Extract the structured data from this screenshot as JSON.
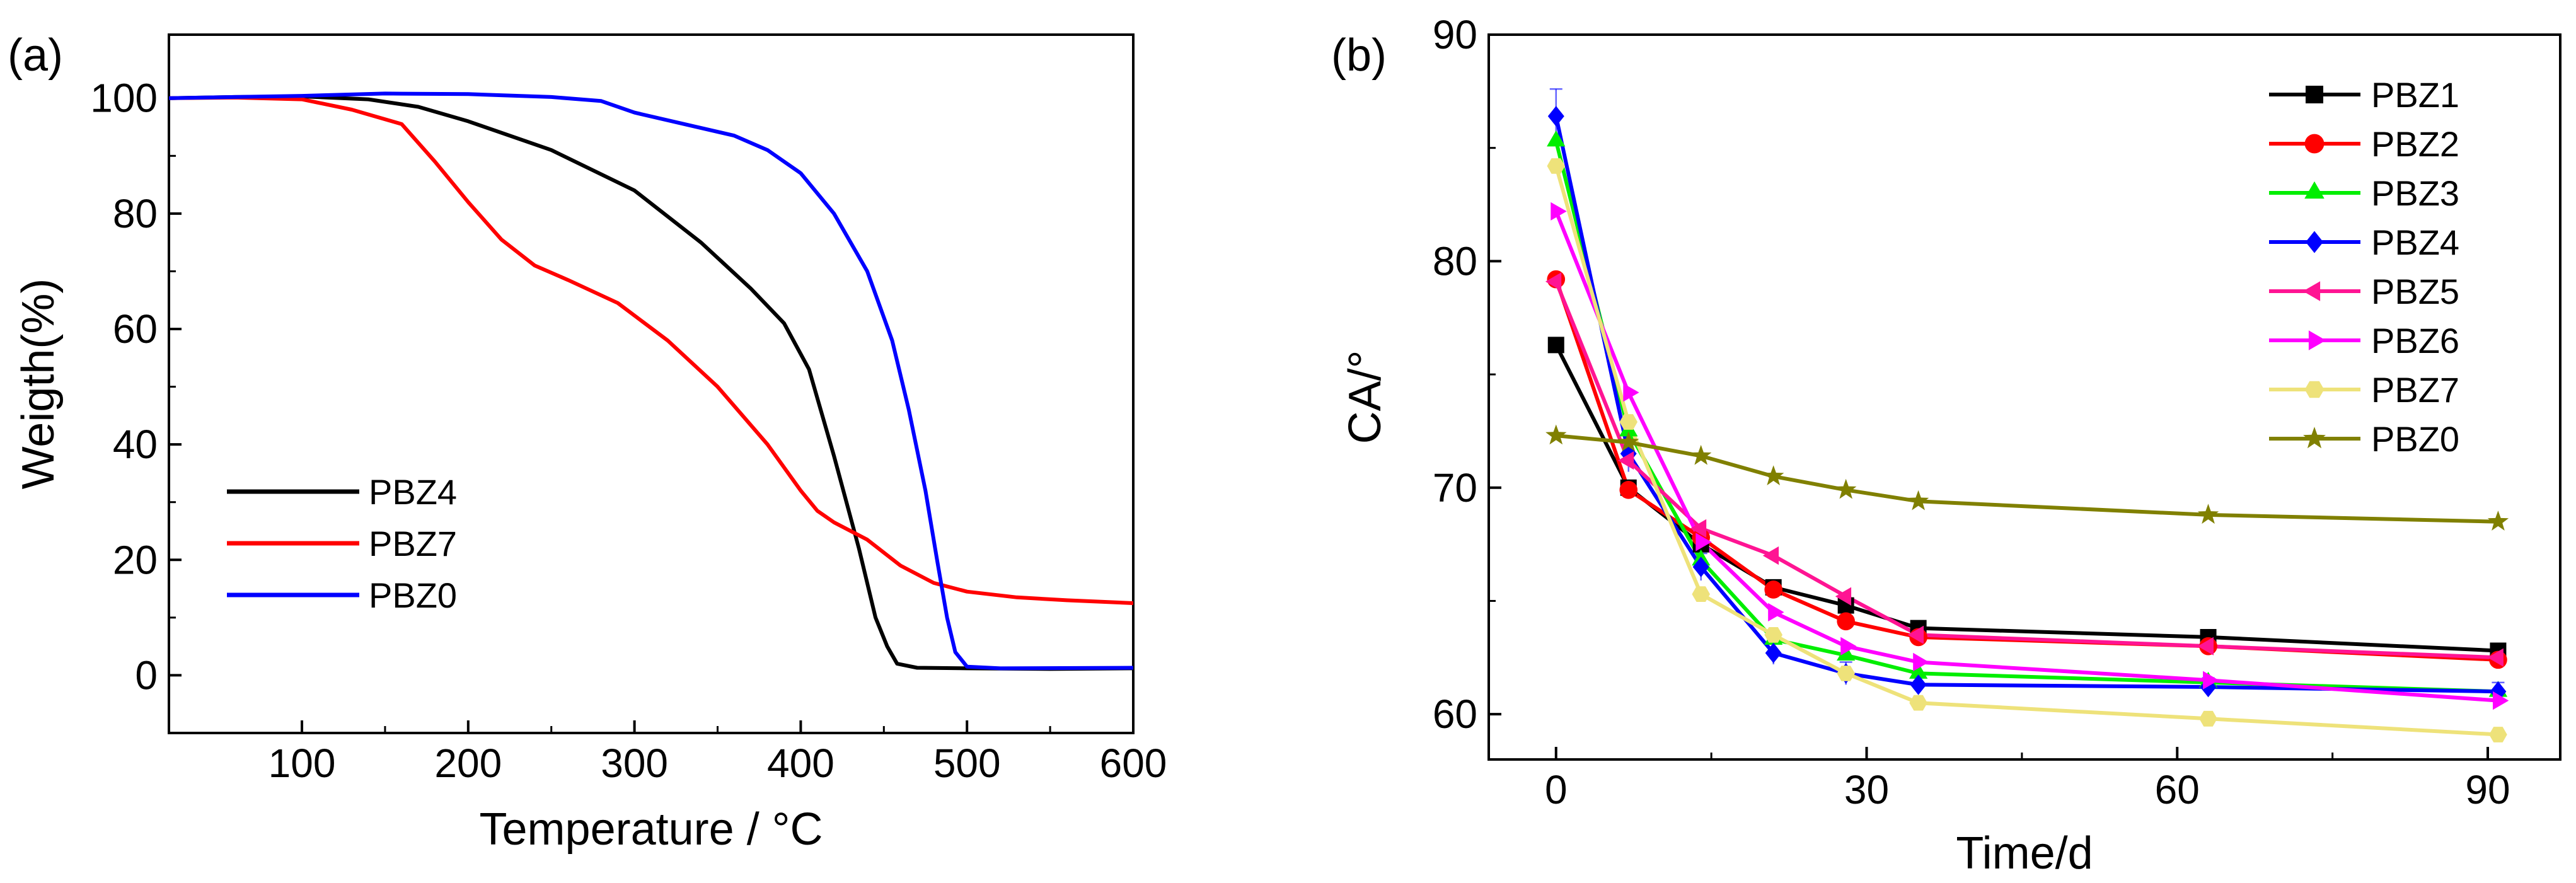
{
  "chart_data": [
    {
      "type": "line",
      "panel_label": "(a)",
      "title": "",
      "xlabel": "Temperature / °C",
      "ylabel": "Weigth(%)",
      "xlim": [
        20,
        600
      ],
      "ylim": [
        -10,
        111
      ],
      "x_ticks": [
        100,
        200,
        300,
        400,
        500,
        600
      ],
      "y_ticks": [
        0,
        20,
        40,
        60,
        80,
        100
      ],
      "x_tick_labels": [
        "100",
        "200",
        "300",
        "400",
        "500",
        "600"
      ],
      "y_tick_labels": [
        "0",
        "20",
        "40",
        "60",
        "80",
        "100"
      ],
      "legend_position": "middle-left",
      "series": [
        {
          "name": "PBZ4",
          "color": "#000000",
          "points": [
            [
              20,
              100
            ],
            [
              60,
              100.2
            ],
            [
              100,
              100.3
            ],
            [
              140,
              99.8
            ],
            [
              170,
              98.5
            ],
            [
              200,
              96
            ],
            [
              250,
              91
            ],
            [
              300,
              84
            ],
            [
              340,
              75
            ],
            [
              370,
              67
            ],
            [
              390,
              61
            ],
            [
              405,
              53
            ],
            [
              420,
              38
            ],
            [
              435,
              22
            ],
            [
              445,
              10
            ],
            [
              452,
              5
            ],
            [
              458,
              2
            ],
            [
              470,
              1.3
            ],
            [
              500,
              1.2
            ],
            [
              550,
              1.1
            ],
            [
              600,
              1.2
            ]
          ]
        },
        {
          "name": "PBZ7",
          "color": "#ff0000",
          "points": [
            [
              20,
              100
            ],
            [
              60,
              100.1
            ],
            [
              100,
              99.8
            ],
            [
              130,
              98
            ],
            [
              160,
              95.5
            ],
            [
              180,
              89
            ],
            [
              200,
              82
            ],
            [
              220,
              75.5
            ],
            [
              240,
              71
            ],
            [
              260,
              68.5
            ],
            [
              290,
              64.5
            ],
            [
              320,
              58
            ],
            [
              350,
              50
            ],
            [
              380,
              40
            ],
            [
              400,
              32
            ],
            [
              410,
              28.5
            ],
            [
              420,
              26.5
            ],
            [
              440,
              23.5
            ],
            [
              460,
              19
            ],
            [
              480,
              16
            ],
            [
              500,
              14.5
            ],
            [
              530,
              13.5
            ],
            [
              560,
              13
            ],
            [
              600,
              12.5
            ]
          ]
        },
        {
          "name": "PBZ0",
          "color": "#0000ff",
          "points": [
            [
              20,
              100
            ],
            [
              60,
              100.2
            ],
            [
              100,
              100.4
            ],
            [
              150,
              100.8
            ],
            [
              200,
              100.7
            ],
            [
              250,
              100.2
            ],
            [
              280,
              99.5
            ],
            [
              300,
              97.5
            ],
            [
              330,
              95.5
            ],
            [
              360,
              93.5
            ],
            [
              380,
              91
            ],
            [
              400,
              87
            ],
            [
              420,
              80
            ],
            [
              440,
              70
            ],
            [
              455,
              58
            ],
            [
              465,
              46
            ],
            [
              475,
              32
            ],
            [
              482,
              20
            ],
            [
              488,
              10
            ],
            [
              493,
              4
            ],
            [
              500,
              1.5
            ],
            [
              520,
              1.2
            ],
            [
              600,
              1.3
            ]
          ]
        }
      ]
    },
    {
      "type": "line",
      "panel_label": "(b)",
      "title": "",
      "xlabel": "Time/d",
      "ylabel": "CA/°",
      "xlim": [
        -6.5,
        97
      ],
      "ylim": [
        58,
        90
      ],
      "x_ticks": [
        0,
        30,
        60,
        90
      ],
      "y_ticks": [
        60,
        70,
        80,
        90
      ],
      "x_tick_labels": [
        "0",
        "30",
        "60",
        "90"
      ],
      "y_tick_labels": [
        "60",
        "70",
        "80",
        "90"
      ],
      "legend_position": "top-right",
      "x": [
        0,
        7,
        14,
        21,
        28,
        35,
        63,
        91
      ],
      "series": [
        {
          "name": "PBZ1",
          "color": "#000000",
          "marker": "square",
          "values": [
            76.3,
            70.0,
            67.5,
            65.6,
            64.8,
            63.8,
            63.4,
            62.8
          ]
        },
        {
          "name": "PBZ2",
          "color": "#ff0000",
          "marker": "circle",
          "values": [
            79.2,
            69.9,
            67.8,
            65.5,
            64.1,
            63.4,
            63.0,
            62.4
          ]
        },
        {
          "name": "PBZ3",
          "color": "#00ee00",
          "marker": "triangle-up",
          "values": [
            85.3,
            72.5,
            66.8,
            63.3,
            62.6,
            61.8,
            61.4,
            61.0
          ]
        },
        {
          "name": "PBZ4",
          "color": "#0000ff",
          "marker": "diamond",
          "values": [
            86.4,
            71.5,
            66.5,
            62.7,
            61.8,
            61.3,
            61.2,
            61.0
          ]
        },
        {
          "name": "PBZ5",
          "color": "#ff1493",
          "marker": "triangle-left",
          "values": [
            79.1,
            71.2,
            68.2,
            67.0,
            65.2,
            63.5,
            63.0,
            62.5
          ]
        },
        {
          "name": "PBZ6",
          "color": "#ff00ff",
          "marker": "triangle-right",
          "values": [
            82.2,
            74.2,
            67.6,
            64.5,
            63.0,
            62.3,
            61.5,
            60.6
          ]
        },
        {
          "name": "PBZ7",
          "color": "#eee27a",
          "marker": "hexagon",
          "values": [
            84.2,
            72.9,
            65.3,
            63.5,
            61.8,
            60.5,
            59.8,
            59.1
          ]
        },
        {
          "name": "PBZ0",
          "color": "#808000",
          "marker": "star",
          "values": [
            72.3,
            72.0,
            71.4,
            70.5,
            69.9,
            69.4,
            68.8,
            68.5
          ]
        }
      ],
      "error_bars": {
        "PBZ4": [
          1.2,
          0.8,
          0.6,
          0.5,
          0.5,
          0.4,
          0.4,
          0.4
        ]
      }
    }
  ]
}
